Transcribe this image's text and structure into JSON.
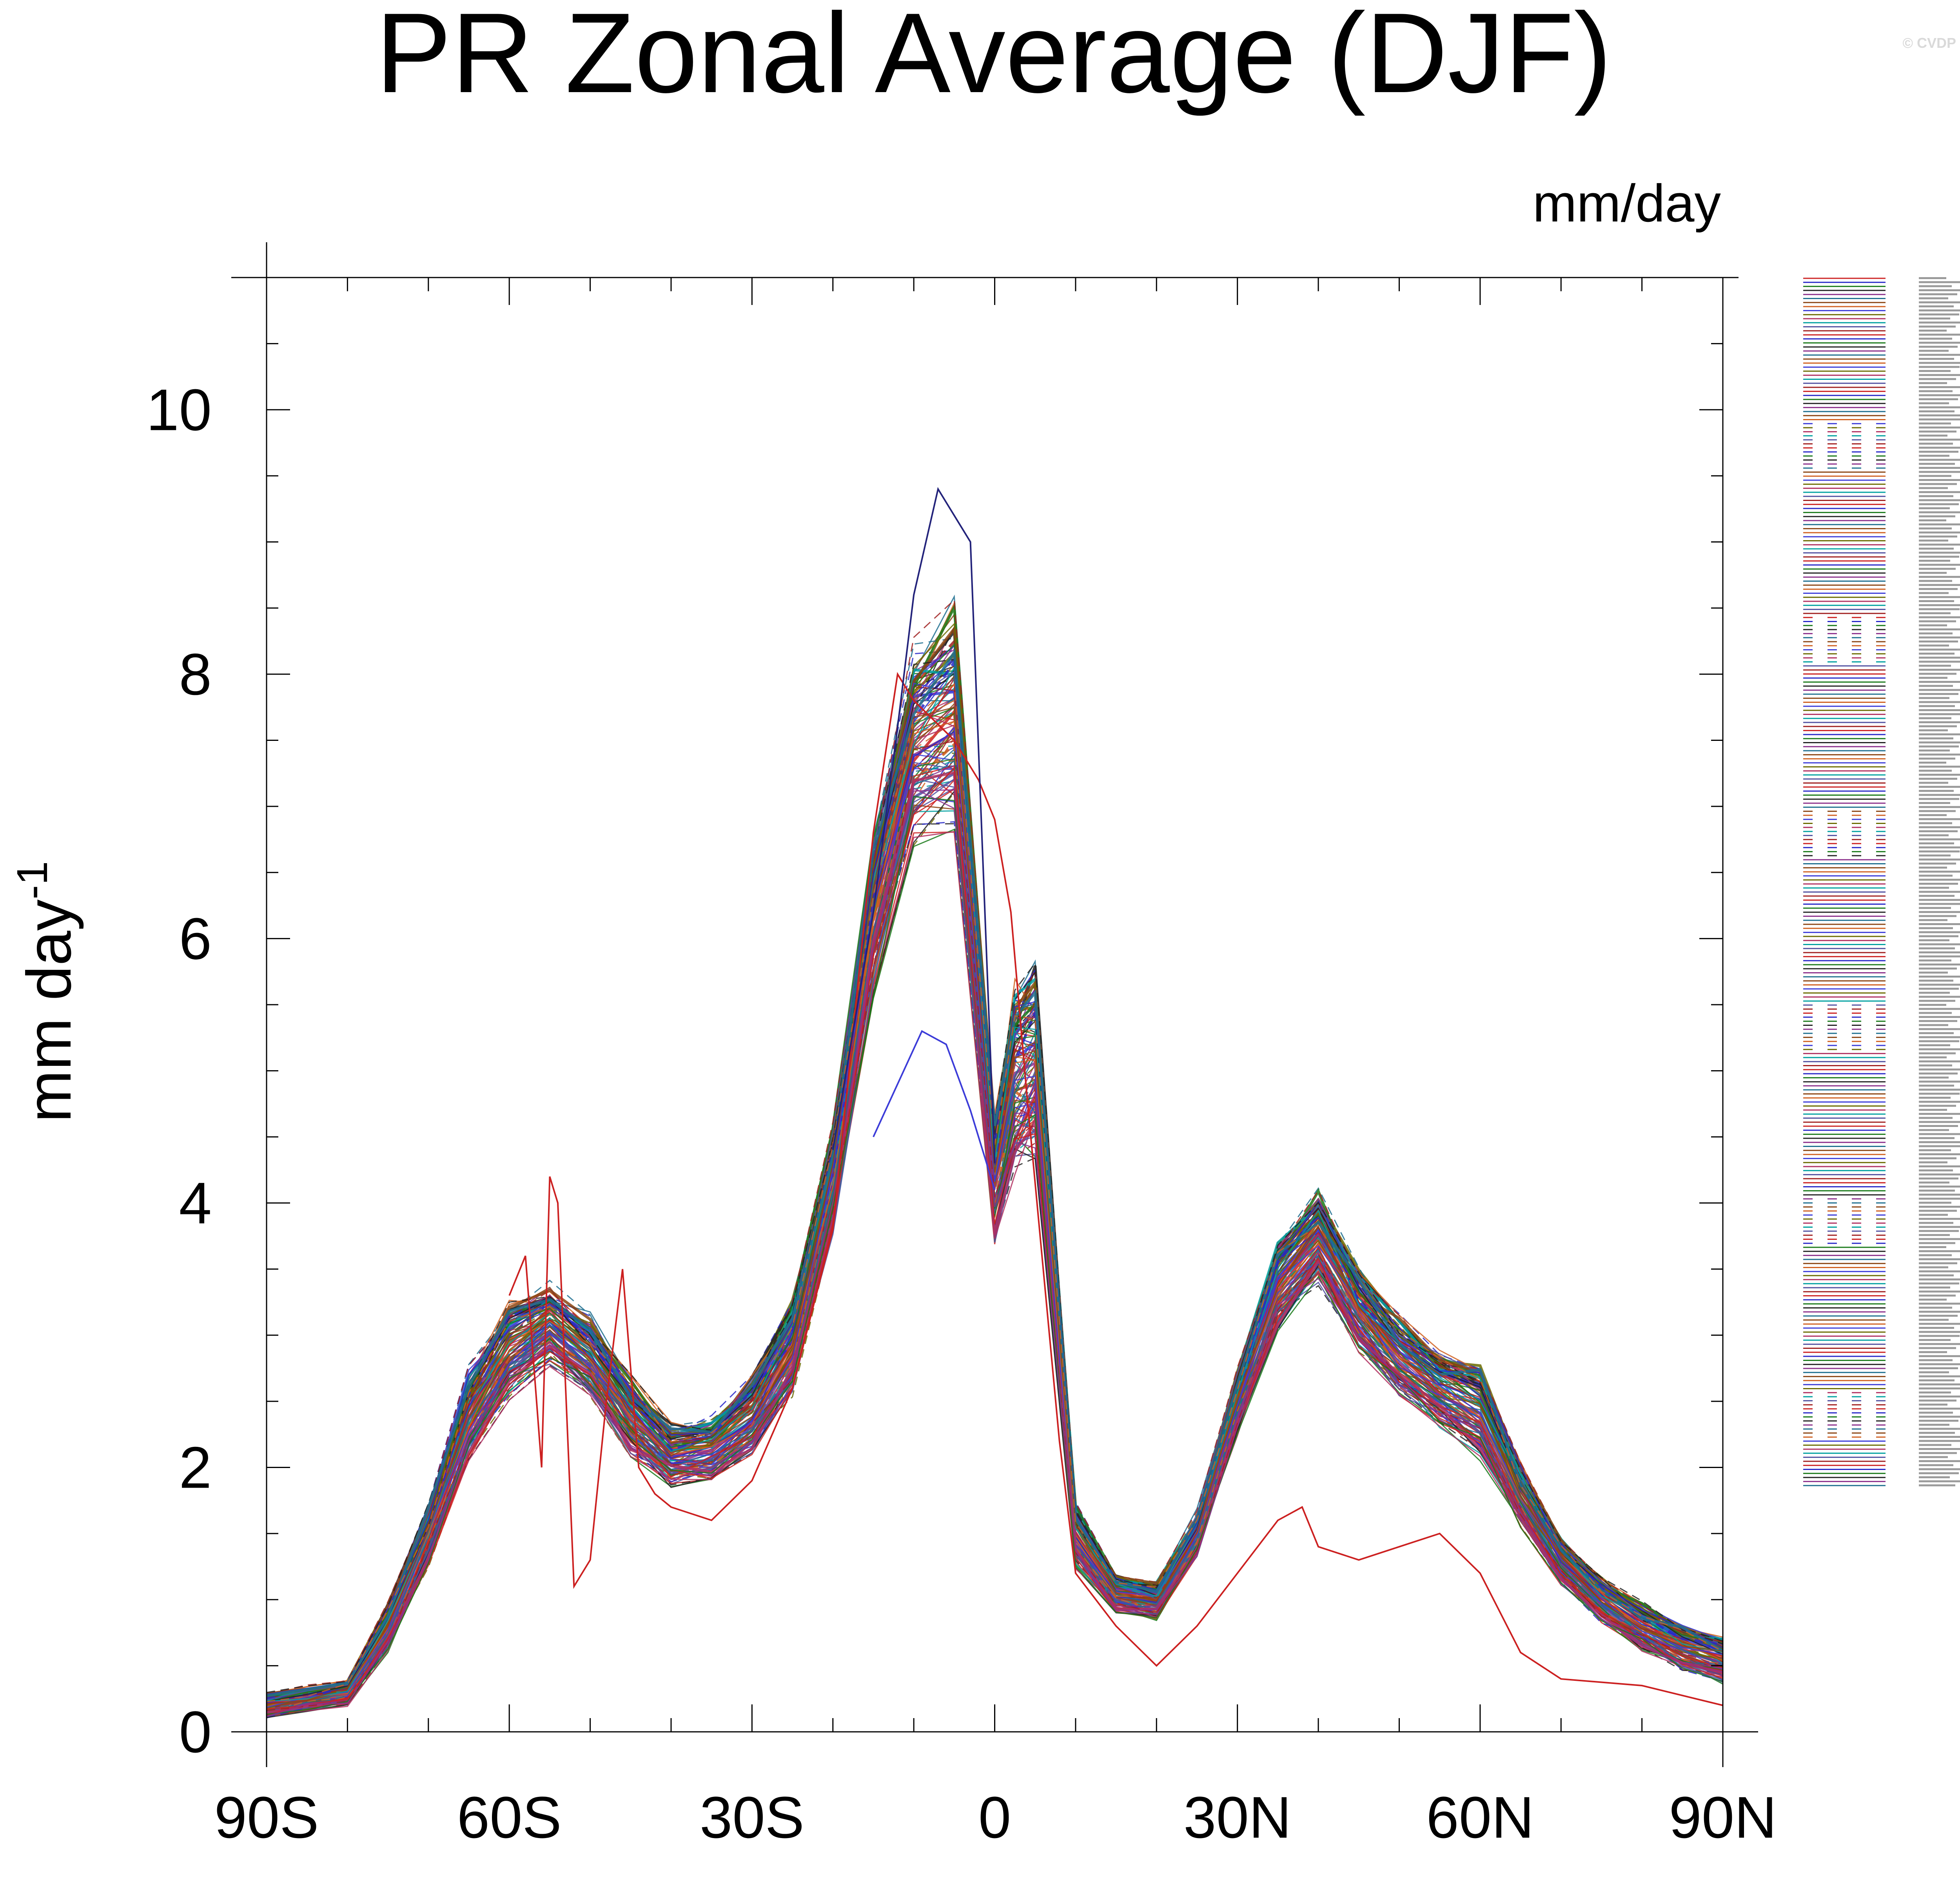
{
  "chart_data": {
    "type": "line",
    "title": "PR Zonal Average (DJF)",
    "units_label": "mm/day",
    "ylabel": "mm day",
    "ylabel_superscript": "-1",
    "watermark": "© CVDP",
    "xlim": [
      -90,
      90
    ],
    "ylim": [
      0,
      11
    ],
    "x_ticks": [
      {
        "value": -90,
        "label": "90S"
      },
      {
        "value": -60,
        "label": "60S"
      },
      {
        "value": -30,
        "label": "30S"
      },
      {
        "value": 0,
        "label": "0"
      },
      {
        "value": 30,
        "label": "30N"
      },
      {
        "value": 60,
        "label": "60N"
      },
      {
        "value": 90,
        "label": "90N"
      }
    ],
    "y_ticks": [
      0,
      2,
      4,
      6,
      8,
      10
    ],
    "ensemble": {
      "member_count": 120,
      "x": [
        -90,
        -85,
        -80,
        -75,
        -70,
        -65,
        -60,
        -55,
        -50,
        -45,
        -40,
        -35,
        -30,
        -25,
        -20,
        -15,
        -10,
        -5,
        0,
        2.5,
        5,
        10,
        15,
        20,
        25,
        30,
        35,
        40,
        45,
        50,
        55,
        60,
        65,
        70,
        75,
        80,
        85,
        90
      ],
      "mean": [
        0.2,
        0.25,
        0.3,
        0.8,
        1.5,
        2.4,
        2.9,
        3.1,
        2.85,
        2.4,
        2.1,
        2.15,
        2.4,
        2.9,
        4.2,
        6.2,
        7.5,
        7.7,
        4.2,
        5.0,
        5.1,
        1.5,
        1.05,
        1.0,
        1.5,
        2.5,
        3.4,
        3.75,
        3.2,
        2.85,
        2.6,
        2.45,
        1.8,
        1.3,
        1.0,
        0.8,
        0.65,
        0.55
      ],
      "spread": [
        0.08,
        0.08,
        0.08,
        0.15,
        0.2,
        0.3,
        0.3,
        0.25,
        0.25,
        0.25,
        0.2,
        0.2,
        0.25,
        0.3,
        0.35,
        0.5,
        0.6,
        0.7,
        0.4,
        0.6,
        0.6,
        0.2,
        0.12,
        0.12,
        0.15,
        0.2,
        0.3,
        0.3,
        0.25,
        0.25,
        0.25,
        0.3,
        0.2,
        0.15,
        0.15,
        0.15,
        0.15,
        0.15
      ]
    },
    "highlighted_series": [
      {
        "name": "high outlier (red)",
        "color": "#cc2020",
        "x": [
          -60,
          -58,
          -56,
          -55,
          -54,
          -52,
          -50,
          -48,
          -46,
          -44,
          -42,
          -40,
          -35,
          -30,
          -25,
          -20,
          -15,
          -12,
          -10,
          -5,
          -2,
          0,
          2,
          4,
          6,
          8,
          10,
          15,
          20,
          25,
          30,
          35,
          38,
          40,
          45,
          50,
          55,
          60,
          65,
          70,
          80,
          90
        ],
        "y": [
          3.3,
          3.6,
          2.0,
          4.2,
          4.0,
          1.1,
          1.3,
          2.5,
          3.5,
          2.0,
          1.8,
          1.7,
          1.6,
          1.9,
          2.6,
          3.8,
          6.8,
          8.0,
          7.8,
          7.5,
          7.2,
          6.9,
          6.2,
          4.8,
          3.5,
          2.2,
          1.2,
          0.8,
          0.5,
          0.8,
          1.2,
          1.6,
          1.7,
          1.4,
          1.3,
          1.4,
          1.5,
          1.2,
          0.6,
          0.4,
          0.35,
          0.2
        ]
      },
      {
        "name": "low outlier (blue)",
        "color": "#3b3bd8",
        "x": [
          -15,
          -12,
          -9,
          -6,
          -3,
          -1,
          0
        ],
        "y": [
          4.5,
          4.9,
          5.3,
          5.2,
          4.7,
          4.3,
          4.1
        ]
      },
      {
        "name": "max spike (navy dashed)",
        "color": "#22227a",
        "x": [
          -20,
          -15,
          -12,
          -10,
          -7,
          -5,
          -3,
          0
        ],
        "y": [
          4.4,
          6.2,
          7.6,
          8.6,
          9.4,
          9.2,
          9.0,
          4.3
        ]
      }
    ],
    "legend": {
      "placement": "right",
      "entry_count": 300
    }
  }
}
